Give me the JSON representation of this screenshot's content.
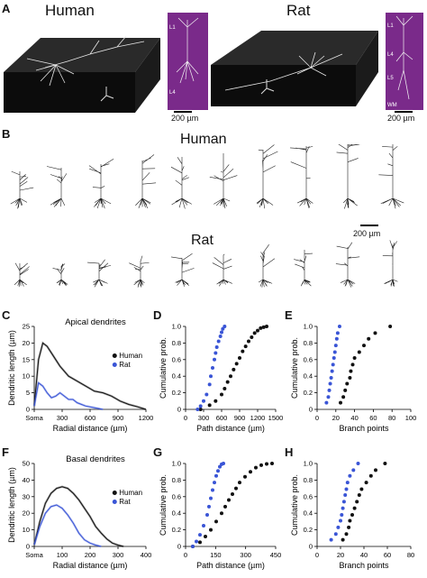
{
  "panels": {
    "A": {
      "letter": "A",
      "human_title": "Human",
      "rat_title": "Rat",
      "human_layers": [
        "L1",
        "L4"
      ],
      "rat_layers": [
        "L1",
        "L4",
        "L5",
        "WM"
      ],
      "human_scale": "200 µm",
      "rat_scale": "200 µm"
    },
    "B": {
      "letter": "B",
      "human_title": "Human",
      "rat_title": "Rat",
      "scale": "200 µm"
    },
    "C": {
      "letter": "C"
    },
    "D": {
      "letter": "D"
    },
    "E": {
      "letter": "E"
    },
    "F": {
      "letter": "F"
    },
    "G": {
      "letter": "G"
    },
    "H": {
      "letter": "H"
    }
  },
  "colors": {
    "human": "#111111",
    "rat": "#3a55d6",
    "neuron_bg": "#7a2a8a"
  },
  "chart_data": [
    {
      "id": "C",
      "type": "line",
      "title": "Apical dendrites",
      "xlabel": "Radial distance (µm)",
      "ylabel": "Dendritic length (µm)",
      "xlim": [
        0,
        1300
      ],
      "ylim": [
        0,
        25
      ],
      "xticks": [
        "Soma",
        "300",
        "600",
        "900",
        "1200"
      ],
      "yticks": [
        "0",
        "5",
        "10",
        "15",
        "20",
        "25"
      ],
      "legend": [
        "Human",
        "Rat"
      ],
      "series": [
        {
          "name": "Human",
          "x": [
            0,
            50,
            100,
            150,
            200,
            250,
            300,
            400,
            500,
            600,
            700,
            800,
            900,
            1000,
            1100,
            1200,
            1300
          ],
          "y": [
            1,
            15,
            20,
            19,
            17,
            15,
            13,
            10,
            8.5,
            7,
            5.5,
            5,
            4,
            2.5,
            1.5,
            0.8,
            0
          ]
        },
        {
          "name": "Rat",
          "x": [
            0,
            50,
            100,
            150,
            200,
            250,
            300,
            350,
            400,
            450,
            500,
            550,
            600,
            700,
            800
          ],
          "y": [
            1,
            8,
            7,
            5,
            3.5,
            4,
            5,
            4,
            3,
            3,
            2,
            1.5,
            1,
            0.5,
            0
          ]
        }
      ]
    },
    {
      "id": "D",
      "type": "scatter",
      "xlabel": "Path distance (µm)",
      "ylabel": "Cumulative prob.",
      "xlim": [
        0,
        1500
      ],
      "ylim": [
        0,
        1
      ],
      "xticks": [
        "0",
        "300",
        "600",
        "900",
        "1200",
        "1500"
      ],
      "yticks": [
        "0",
        "0.2",
        "0.4",
        "0.6",
        "0.8",
        "1.0"
      ],
      "series": [
        {
          "name": "Human",
          "x": [
            250,
            400,
            500,
            600,
            650,
            700,
            750,
            800,
            850,
            900,
            950,
            1000,
            1050,
            1100,
            1150,
            1200,
            1250,
            1300,
            1350
          ],
          "y": [
            0,
            0.05,
            0.1,
            0.18,
            0.25,
            0.33,
            0.4,
            0.48,
            0.55,
            0.62,
            0.7,
            0.76,
            0.82,
            0.87,
            0.92,
            0.95,
            0.98,
            0.99,
            1.0
          ]
        },
        {
          "name": "Rat",
          "x": [
            200,
            250,
            300,
            350,
            400,
            420,
            450,
            480,
            500,
            520,
            550,
            580,
            600,
            620,
            650
          ],
          "y": [
            0,
            0.04,
            0.1,
            0.18,
            0.3,
            0.4,
            0.5,
            0.6,
            0.68,
            0.75,
            0.82,
            0.88,
            0.93,
            0.97,
            1.0
          ]
        }
      ]
    },
    {
      "id": "E",
      "type": "scatter",
      "xlabel": "Branch points",
      "ylabel": "Cumulative prob.",
      "xlim": [
        0,
        100
      ],
      "ylim": [
        0,
        1
      ],
      "xticks": [
        "0",
        "20",
        "40",
        "60",
        "80",
        "100"
      ],
      "yticks": [
        "0",
        "0.2",
        "0.4",
        "0.6",
        "0.8",
        "1.0"
      ],
      "series": [
        {
          "name": "Human",
          "x": [
            25,
            28,
            30,
            32,
            35,
            36,
            38,
            40,
            45,
            50,
            55,
            62,
            78
          ],
          "y": [
            0.08,
            0.15,
            0.23,
            0.31,
            0.38,
            0.46,
            0.54,
            0.62,
            0.69,
            0.77,
            0.85,
            0.92,
            1.0
          ]
        },
        {
          "name": "Rat",
          "x": [
            10,
            12,
            13,
            14,
            15,
            16,
            17,
            18,
            19,
            20,
            21,
            22,
            24
          ],
          "y": [
            0.08,
            0.15,
            0.23,
            0.31,
            0.38,
            0.46,
            0.54,
            0.62,
            0.69,
            0.77,
            0.85,
            0.92,
            1.0
          ]
        }
      ]
    },
    {
      "id": "F",
      "type": "line",
      "title": "Basal dendrites",
      "xlabel": "Radial distance (µm)",
      "ylabel": "Dendritic length (µm)",
      "xlim": [
        0,
        400
      ],
      "ylim": [
        0,
        50
      ],
      "xticks": [
        "Soma",
        "100",
        "200",
        "300",
        "400"
      ],
      "yticks": [
        "0",
        "10",
        "20",
        "30",
        "40",
        "50"
      ],
      "legend": [
        "Human",
        "Rat"
      ],
      "series": [
        {
          "name": "Human",
          "x": [
            0,
            20,
            40,
            60,
            80,
            100,
            120,
            140,
            160,
            180,
            200,
            220,
            240,
            260,
            280,
            300,
            320
          ],
          "y": [
            1,
            15,
            26,
            32,
            35,
            36,
            35,
            32,
            28,
            23,
            18,
            12,
            8,
            4.5,
            2,
            0.8,
            0
          ]
        },
        {
          "name": "Rat",
          "x": [
            0,
            20,
            40,
            60,
            80,
            100,
            120,
            140,
            160,
            180,
            200,
            220,
            240
          ],
          "y": [
            1,
            12,
            20,
            24,
            25,
            23,
            19,
            14,
            8,
            4,
            2,
            0.8,
            0
          ]
        }
      ]
    },
    {
      "id": "G",
      "type": "scatter",
      "xlabel": "Path distance (µm)",
      "ylabel": "Cumulative prob.",
      "xlim": [
        0,
        500
      ],
      "ylim": [
        0,
        1
      ],
      "xticks": [
        "0",
        "150",
        "300",
        "450"
      ],
      "yticks": [
        "0",
        "0.2",
        "0.4",
        "0.6",
        "0.8",
        "1.0"
      ],
      "series": [
        {
          "name": "Human",
          "x": [
            40,
            80,
            110,
            140,
            170,
            200,
            220,
            240,
            260,
            280,
            300,
            330,
            360,
            390,
            420,
            450,
            480
          ],
          "y": [
            0,
            0.05,
            0.12,
            0.2,
            0.3,
            0.4,
            0.48,
            0.56,
            0.63,
            0.7,
            0.77,
            0.84,
            0.9,
            0.95,
            0.98,
            0.995,
            1.0
          ]
        },
        {
          "name": "Rat",
          "x": [
            40,
            60,
            80,
            100,
            120,
            130,
            140,
            150,
            160,
            170,
            180,
            190,
            200,
            210
          ],
          "y": [
            0,
            0.06,
            0.14,
            0.25,
            0.38,
            0.48,
            0.58,
            0.68,
            0.77,
            0.85,
            0.91,
            0.96,
            0.99,
            1.0
          ]
        }
      ]
    },
    {
      "id": "H",
      "type": "scatter",
      "xlabel": "Branch points",
      "ylabel": "Cumulative prob.",
      "xlim": [
        0,
        80
      ],
      "ylim": [
        0,
        1
      ],
      "xticks": [
        "0",
        "20",
        "40",
        "60",
        "80"
      ],
      "yticks": [
        "0",
        "0.2",
        "0.4",
        "0.6",
        "0.8",
        "1.0"
      ],
      "series": [
        {
          "name": "Human",
          "x": [
            22,
            25,
            27,
            28,
            30,
            32,
            34,
            36,
            38,
            42,
            46,
            50,
            58
          ],
          "y": [
            0.08,
            0.15,
            0.23,
            0.31,
            0.38,
            0.46,
            0.54,
            0.62,
            0.69,
            0.77,
            0.85,
            0.92,
            1.0
          ]
        },
        {
          "name": "Rat",
          "x": [
            12,
            16,
            18,
            20,
            21,
            22,
            23,
            24,
            25,
            26,
            28,
            31,
            35
          ],
          "y": [
            0.08,
            0.15,
            0.23,
            0.31,
            0.38,
            0.46,
            0.54,
            0.62,
            0.69,
            0.77,
            0.85,
            0.92,
            1.0
          ]
        }
      ]
    }
  ]
}
